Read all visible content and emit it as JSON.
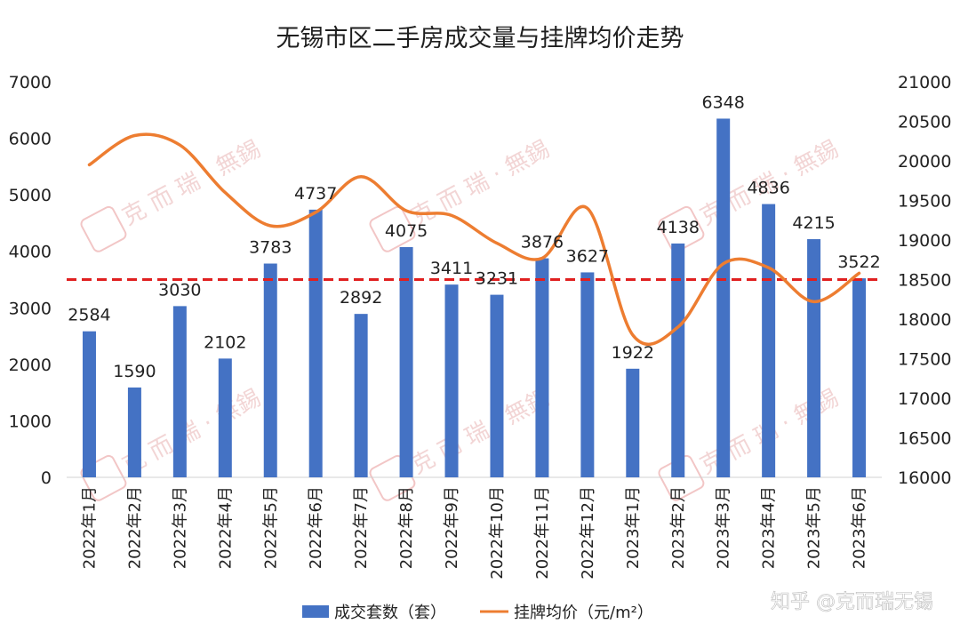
{
  "chart_data": {
    "type": "bar",
    "title": "无锡市区二手房成交量与挂牌均价走势",
    "categories": [
      "2022年1月",
      "2022年2月",
      "2022年3月",
      "2022年4月",
      "2022年5月",
      "2022年6月",
      "2022年7月",
      "2022年8月",
      "2022年9月",
      "2022年10月",
      "2022年11月",
      "2022年12月",
      "2023年1月",
      "2023年2月",
      "2023年3月",
      "2023年4月",
      "2023年5月",
      "2023年6月"
    ],
    "series": [
      {
        "name": "成交套数（套）",
        "kind": "bar",
        "axis": "left",
        "color": "#4472c4",
        "values": [
          2584,
          1590,
          3030,
          2102,
          3783,
          4737,
          2892,
          4075,
          3411,
          3231,
          3876,
          3627,
          1922,
          4138,
          6348,
          4836,
          4215,
          3522
        ],
        "labels": [
          "2584",
          "1590",
          "3030",
          "2102",
          "3783",
          "4737",
          "2892",
          "4075",
          "3411",
          "3231",
          "3876",
          "3627",
          "1922",
          "4138",
          "6348",
          "4836",
          "4215",
          "3522"
        ]
      },
      {
        "name": "挂牌均价（元/m²）",
        "kind": "line",
        "smooth": true,
        "axis": "right",
        "color": "#ed7d31",
        "values": [
          19950,
          20320,
          20200,
          19600,
          19180,
          19350,
          19800,
          19370,
          19310,
          18960,
          18770,
          19400,
          17800,
          17900,
          18700,
          18650,
          18220,
          18580
        ]
      }
    ],
    "left_axis": {
      "range": [
        0,
        7000
      ],
      "ticks": [
        0,
        1000,
        2000,
        3000,
        4000,
        5000,
        6000,
        7000
      ],
      "tick_labels": [
        "0",
        "1000",
        "2000",
        "3000",
        "4000",
        "5000",
        "6000",
        "7000"
      ]
    },
    "right_axis": {
      "range": [
        16000,
        21000
      ],
      "ticks": [
        16000,
        16500,
        17000,
        17500,
        18000,
        18500,
        19000,
        19500,
        20000,
        20500,
        21000
      ],
      "tick_labels": [
        "16000",
        "16500",
        "17000",
        "17500",
        "18000",
        "18500",
        "19000",
        "19500",
        "20000",
        "20500",
        "21000"
      ]
    },
    "reference_line": {
      "axis": "right",
      "value": 18500,
      "style": "dashed",
      "color": "#e02020"
    },
    "grid": false,
    "legend": "bottom"
  },
  "watermark": {
    "text": "克 而 瑞 · 無錫",
    "seal_text": "克而瑞"
  },
  "credit": "知乎 @克而瑞无锡"
}
